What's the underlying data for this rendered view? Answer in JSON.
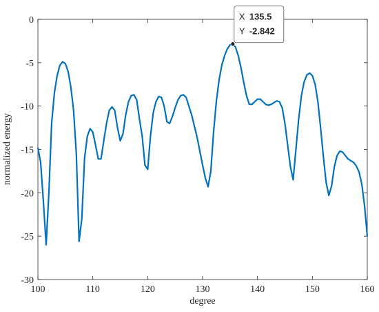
{
  "chart_data": {
    "type": "line",
    "xlabel": "degree",
    "ylabel": "normalized energy",
    "color": "#0072bd",
    "x": [
      100,
      100.5,
      101,
      101.5,
      102,
      102.5,
      103,
      103.5,
      104,
      104.5,
      105,
      105.5,
      106,
      106.5,
      107,
      107.5,
      108,
      108.5,
      109,
      109.5,
      110,
      110.5,
      111,
      111.5,
      112,
      112.5,
      113,
      113.5,
      114,
      114.5,
      115,
      115.5,
      116,
      116.5,
      117,
      117.5,
      118,
      118.5,
      119,
      119.5,
      120,
      120.5,
      121,
      121.5,
      122,
      122.5,
      123,
      123.5,
      124,
      124.5,
      125,
      125.5,
      126,
      126.5,
      127,
      127.5,
      128,
      128.5,
      129,
      129.5,
      130,
      130.5,
      131,
      131.5,
      132,
      132.5,
      133,
      133.5,
      134,
      134.5,
      135,
      135.5,
      136,
      136.5,
      137,
      137.5,
      138,
      138.5,
      139,
      139.5,
      140,
      140.5,
      141,
      141.5,
      142,
      142.5,
      143,
      143.5,
      144,
      144.5,
      145,
      145.5,
      146,
      146.5,
      147,
      147.5,
      148,
      148.5,
      149,
      149.5,
      150,
      150.5,
      151,
      151.5,
      152,
      152.5,
      153,
      153.5,
      154,
      154.5,
      155,
      155.5,
      156,
      156.5,
      157,
      157.5,
      158,
      158.5,
      159,
      159.5,
      160
    ],
    "values": [
      -14.8,
      -16.5,
      -21,
      -26,
      -20,
      -12,
      -8.5,
      -6.5,
      -5.3,
      -4.9,
      -5.1,
      -6,
      -7.8,
      -10.5,
      -15.5,
      -25.6,
      -23,
      -16,
      -13.5,
      -12.6,
      -13,
      -14.5,
      -16.1,
      -16.1,
      -14,
      -12,
      -10.5,
      -10.1,
      -10.5,
      -12.5,
      -14,
      -13.2,
      -11,
      -9.5,
      -8.8,
      -8.7,
      -9.3,
      -11.5,
      -13.5,
      -16.8,
      -17.3,
      -13.5,
      -10.8,
      -9.5,
      -8.9,
      -9,
      -10,
      -11.8,
      -12,
      -11.2,
      -10.2,
      -9.3,
      -8.8,
      -8.7,
      -9,
      -10,
      -11,
      -12.3,
      -13.6,
      -15.2,
      -16.8,
      -18.3,
      -19.3,
      -17.5,
      -13,
      -9.5,
      -7,
      -5.3,
      -4.2,
      -3.4,
      -2.95,
      -2.842,
      -3.2,
      -4.2,
      -5.6,
      -7.3,
      -8.8,
      -9.8,
      -9.8,
      -9.5,
      -9.2,
      -9.2,
      -9.5,
      -9.8,
      -9.9,
      -9.8,
      -9.6,
      -9.4,
      -9.5,
      -10.2,
      -12,
      -14.5,
      -17,
      -18.5,
      -15,
      -11.5,
      -8.8,
      -7.2,
      -6.4,
      -6.2,
      -6.5,
      -7.5,
      -9.5,
      -12.5,
      -15.8,
      -18.8,
      -20.3,
      -19.2,
      -17,
      -15.7,
      -15.2,
      -15.3,
      -15.7,
      -16.1,
      -16.3,
      -16.5,
      -16.9,
      -17.6,
      -19,
      -21.5,
      -25
    ],
    "xlim": [
      100,
      160
    ],
    "xticks": [
      100,
      110,
      120,
      130,
      140,
      150,
      160
    ],
    "ylim": [
      -30,
      0
    ],
    "yticks": [
      -30,
      -25,
      -20,
      -15,
      -10,
      -5,
      0
    ],
    "annotation": {
      "x_label": "X",
      "x": 135.5,
      "y_label": "Y",
      "y": -2.842
    }
  }
}
